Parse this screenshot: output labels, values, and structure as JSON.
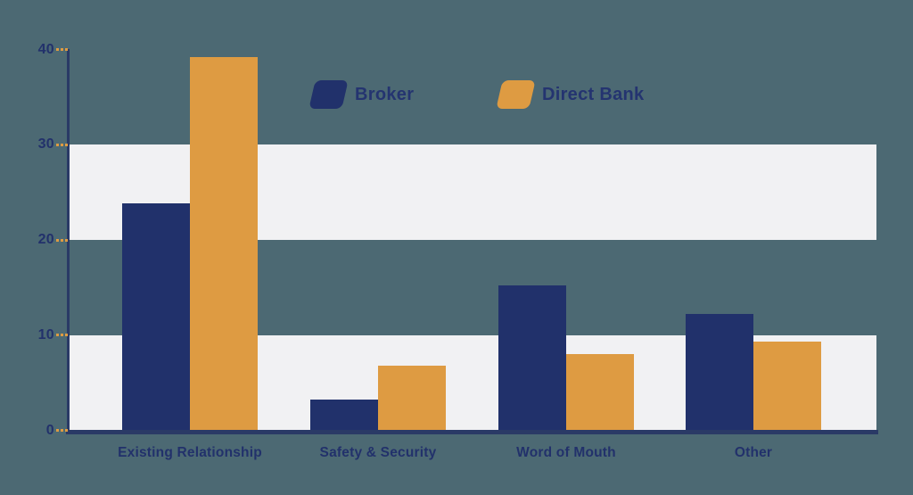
{
  "chart_data": {
    "type": "bar",
    "title": "",
    "categories": [
      "Existing Relationship",
      "Safety & Security",
      "Word of Mouth",
      "Other"
    ],
    "series": [
      {
        "name": "Broker",
        "color": "#21316B",
        "values": [
          23.8,
          3.2,
          15.2,
          12.2
        ]
      },
      {
        "name": "Direct Bank",
        "color": "#DE9B42",
        "values": [
          39.2,
          6.8,
          8,
          9.3
        ]
      }
    ],
    "xlabel": "",
    "ylabel": "",
    "y_axis": {
      "ticks": [
        0,
        10,
        20,
        30,
        40
      ],
      "range": [
        0,
        40
      ]
    },
    "legend": {
      "position": "top-center",
      "entries": [
        "Broker",
        "Direct Bank"
      ]
    },
    "grid": "alternating horizontal background bands covering value ranges 0-10 and 20-30",
    "band_ranges": [
      [
        0,
        10
      ],
      [
        20,
        30
      ]
    ],
    "colors": {
      "background": "#4C6973",
      "band": "#F1F1F3",
      "axis": "#2A3A66",
      "tick_dash": "#DE9B42",
      "label_text": "#22316B"
    }
  }
}
